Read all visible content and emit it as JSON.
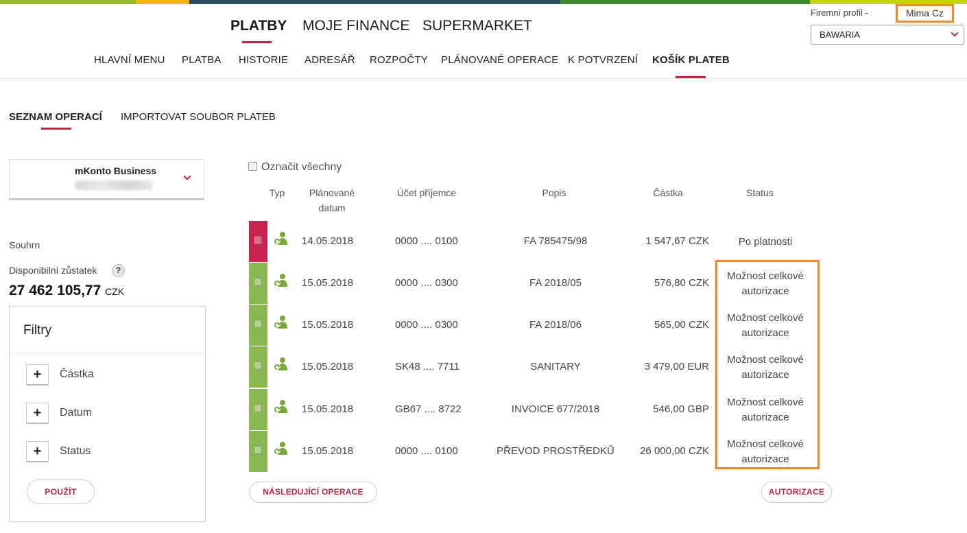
{
  "brand_colors": {
    "accent": "#c4233f",
    "green": "#8bb752",
    "highlight": "#f0882c",
    "stripe": [
      "#8dbb2c",
      "#f0b400",
      "#2f4f63",
      "#3f8a2e",
      "#c8d400"
    ]
  },
  "header": {
    "main_nav": [
      {
        "label": "PLATBY",
        "active": true
      },
      {
        "label": "MOJE FINANCE",
        "active": false
      },
      {
        "label": "SUPERMARKET",
        "active": false
      }
    ],
    "sub_nav": [
      {
        "label": "HLAVNÍ MENU"
      },
      {
        "label": "PLATBA"
      },
      {
        "label": "HISTORIE"
      },
      {
        "label": "ADRESÁŘ"
      },
      {
        "label": "ROZPOČTY"
      },
      {
        "label": "PLÁNOVANÉ OPERACE"
      },
      {
        "label": "K POTVRZENÍ"
      },
      {
        "label": "KOŠÍK PLATEB",
        "active": true
      }
    ],
    "profile_label": "Firemní profil  -",
    "user_name": "Mima Cz",
    "profile_selected": "BAWARIA"
  },
  "tabs": [
    {
      "label": "SEZNAM OPERACÍ",
      "active": true
    },
    {
      "label": "IMPORTOVAT SOUBOR PLATEB",
      "active": false
    }
  ],
  "sidebar": {
    "account_name": "mKonto Business",
    "summary_label": "Souhrn",
    "balance_label": "Disponibilní zůstatek",
    "help_symbol": "?",
    "balance_value": "27 462 105,77",
    "balance_currency": "CZK",
    "filters": {
      "title": "Filtry",
      "items": [
        "Částka",
        "Datum",
        "Status"
      ],
      "apply_label": "POUŽÍT"
    }
  },
  "table": {
    "select_all_label": "Označit všechny",
    "columns": {
      "type": "Typ",
      "date_line1": "Plánované",
      "date_line2": "datum",
      "account": "Účet příjemce",
      "desc": "Popis",
      "amount": "Částka",
      "status": "Status"
    },
    "rows": [
      {
        "bar": "#c8234f",
        "icon": "transfer-person-icon",
        "date": "14.05.2018",
        "account": "0000 .... 0100",
        "desc": "FA 785475/98",
        "amount": "1 547,67 CZK",
        "status1": "Po platnosti",
        "status2": ""
      },
      {
        "bar": "#8bb752",
        "icon": "transfer-person-icon",
        "date": "15.05.2018",
        "account": "0000 .... 0300",
        "desc": "FA 2018/05",
        "amount": "576,80 CZK",
        "status1": "Možnost celkové",
        "status2": "autorizace"
      },
      {
        "bar": "#8bb752",
        "icon": "transfer-person-icon",
        "date": "15.05.2018",
        "account": "0000 .... 0300",
        "desc": "FA 2018/06",
        "amount": "565,00 CZK",
        "status1": "Možnost celkové",
        "status2": "autorizace"
      },
      {
        "bar": "#8bb752",
        "icon": "transfer-person-icon",
        "date": "15.05.2018",
        "account": "SK48 .... 7711",
        "desc": "SANITARY",
        "amount": "3 479,00 EUR",
        "status1": "Možnost celkové",
        "status2": "autorizace"
      },
      {
        "bar": "#8bb752",
        "icon": "transfer-person-icon",
        "date": "15.05.2018",
        "account": "GB67 .... 8722",
        "desc": "INVOICE 677/2018",
        "amount": "546,00 GBP",
        "status1": "Možnost celkové",
        "status2": "autorizace"
      },
      {
        "bar": "#8bb752",
        "icon": "transfer-person-icon",
        "date": "15.05.2018",
        "account": "0000 .... 0100",
        "desc": "PŘEVOD PROSTŘEDKŮ",
        "amount": "26 000,00 CZK",
        "status1": "Možnost celkové",
        "status2": "autorizace"
      }
    ],
    "next_label": "NÁSLEDUJÍCÍ OPERACE",
    "authorize_label": "AUTORIZACE"
  }
}
